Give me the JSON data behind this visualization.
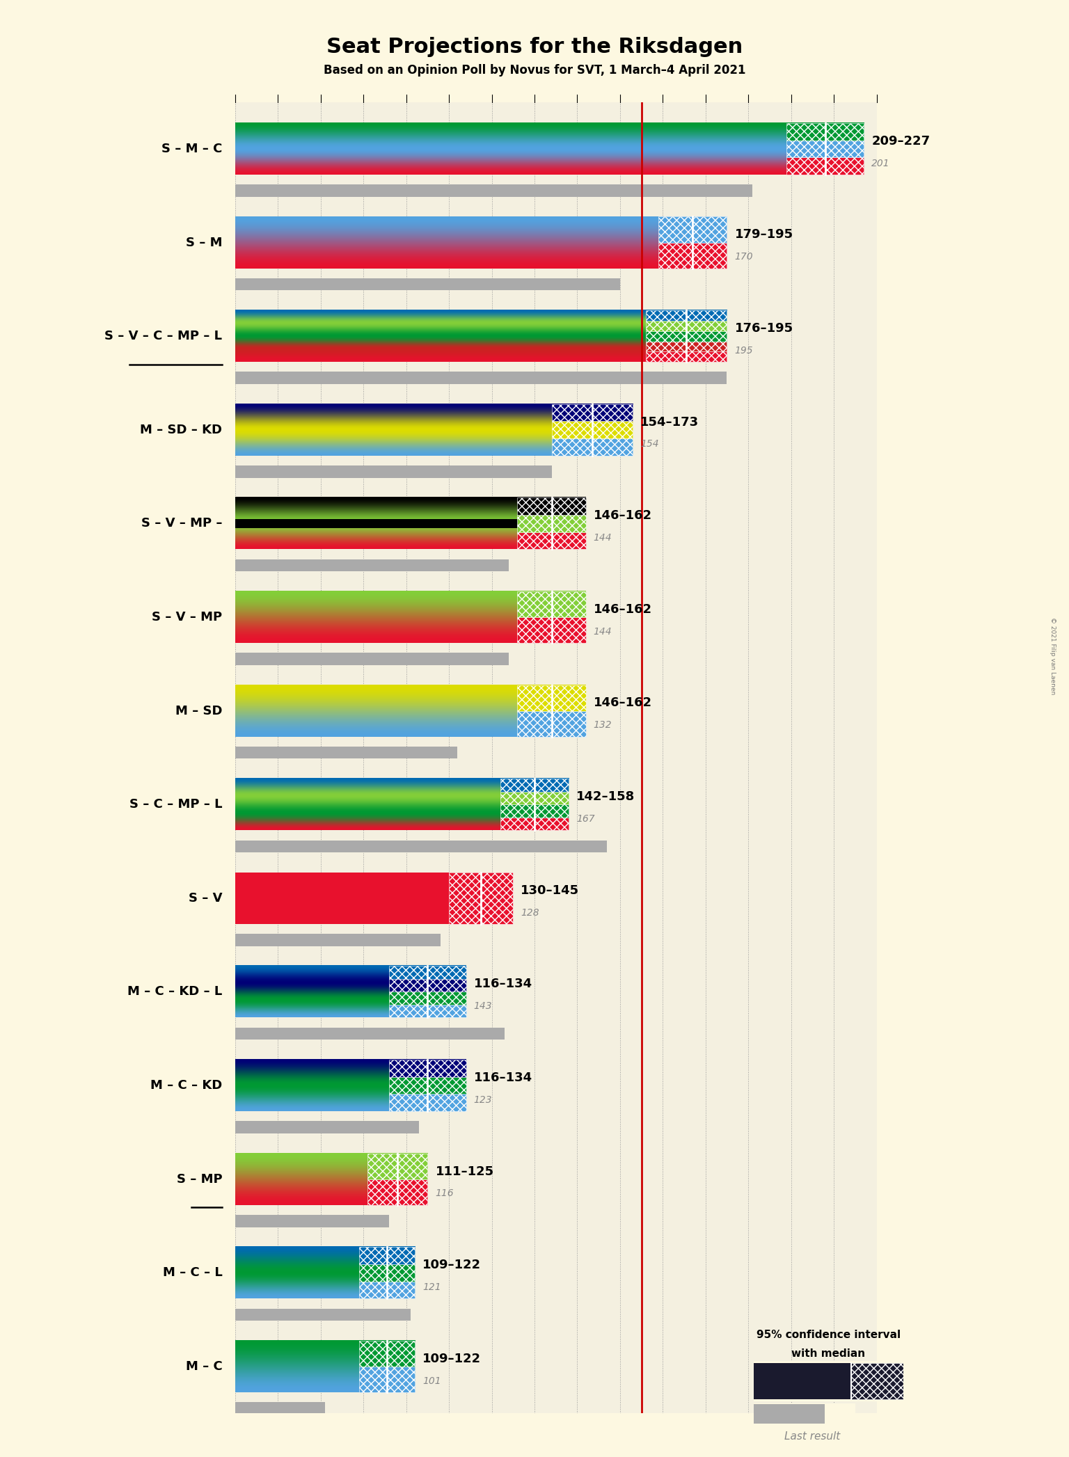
{
  "title": "Seat Projections for the Riksdagen",
  "subtitle": "Based on an Opinion Poll by Novus for SVT, 1 March–4 April 2021",
  "copyright": "© 2021 Filip van Laenen",
  "background_color": "#fdf8e1",
  "majority_line": 175,
  "xmin": 80,
  "xmax": 230,
  "grid_interval": 10,
  "party_colors": {
    "S": "#e8112d",
    "M": "#52a3e0",
    "C": "#009933",
    "V": "#cc2222",
    "MP": "#83cf39",
    "L": "#006ab3",
    "KD": "#000077",
    "SD": "#dddd00"
  },
  "coalitions": [
    {
      "name": "S – M – C",
      "underline": false,
      "range_low": 209,
      "range_high": 227,
      "last_result": 201,
      "parties": [
        "S",
        "M",
        "C"
      ]
    },
    {
      "name": "S – M",
      "underline": false,
      "range_low": 179,
      "range_high": 195,
      "last_result": 170,
      "parties": [
        "S",
        "M"
      ]
    },
    {
      "name": "S – V – C – MP – L",
      "underline": true,
      "range_low": 176,
      "range_high": 195,
      "last_result": 195,
      "parties": [
        "S",
        "V",
        "C",
        "MP",
        "L"
      ]
    },
    {
      "name": "M – SD – KD",
      "underline": false,
      "range_low": 154,
      "range_high": 173,
      "last_result": 154,
      "parties": [
        "M",
        "SD",
        "KD"
      ]
    },
    {
      "name": "S – V – MP –",
      "underline": false,
      "range_low": 146,
      "range_high": 162,
      "last_result": 144,
      "parties": [
        "S",
        "MP",
        "black"
      ],
      "extra_black": true
    },
    {
      "name": "S – V – MP",
      "underline": false,
      "range_low": 146,
      "range_high": 162,
      "last_result": 144,
      "parties": [
        "S",
        "MP"
      ]
    },
    {
      "name": "M – SD",
      "underline": false,
      "range_low": 146,
      "range_high": 162,
      "last_result": 132,
      "parties": [
        "M",
        "SD"
      ]
    },
    {
      "name": "S – C – MP – L",
      "underline": false,
      "range_low": 142,
      "range_high": 158,
      "last_result": 167,
      "parties": [
        "S",
        "C",
        "MP",
        "L"
      ]
    },
    {
      "name": "S – V",
      "underline": false,
      "range_low": 130,
      "range_high": 145,
      "last_result": 128,
      "parties": [
        "S"
      ]
    },
    {
      "name": "M – C – KD – L",
      "underline": false,
      "range_low": 116,
      "range_high": 134,
      "last_result": 143,
      "parties": [
        "M",
        "C",
        "KD",
        "L"
      ]
    },
    {
      "name": "M – C – KD",
      "underline": false,
      "range_low": 116,
      "range_high": 134,
      "last_result": 123,
      "parties": [
        "M",
        "C",
        "KD"
      ]
    },
    {
      "name": "S – MP",
      "underline": true,
      "range_low": 111,
      "range_high": 125,
      "last_result": 116,
      "parties": [
        "S",
        "MP"
      ]
    },
    {
      "name": "M – C – L",
      "underline": false,
      "range_low": 109,
      "range_high": 122,
      "last_result": 121,
      "parties": [
        "M",
        "C",
        "L"
      ]
    },
    {
      "name": "M – C",
      "underline": false,
      "range_low": 109,
      "range_high": 122,
      "last_result": 101,
      "parties": [
        "M",
        "C"
      ]
    }
  ]
}
